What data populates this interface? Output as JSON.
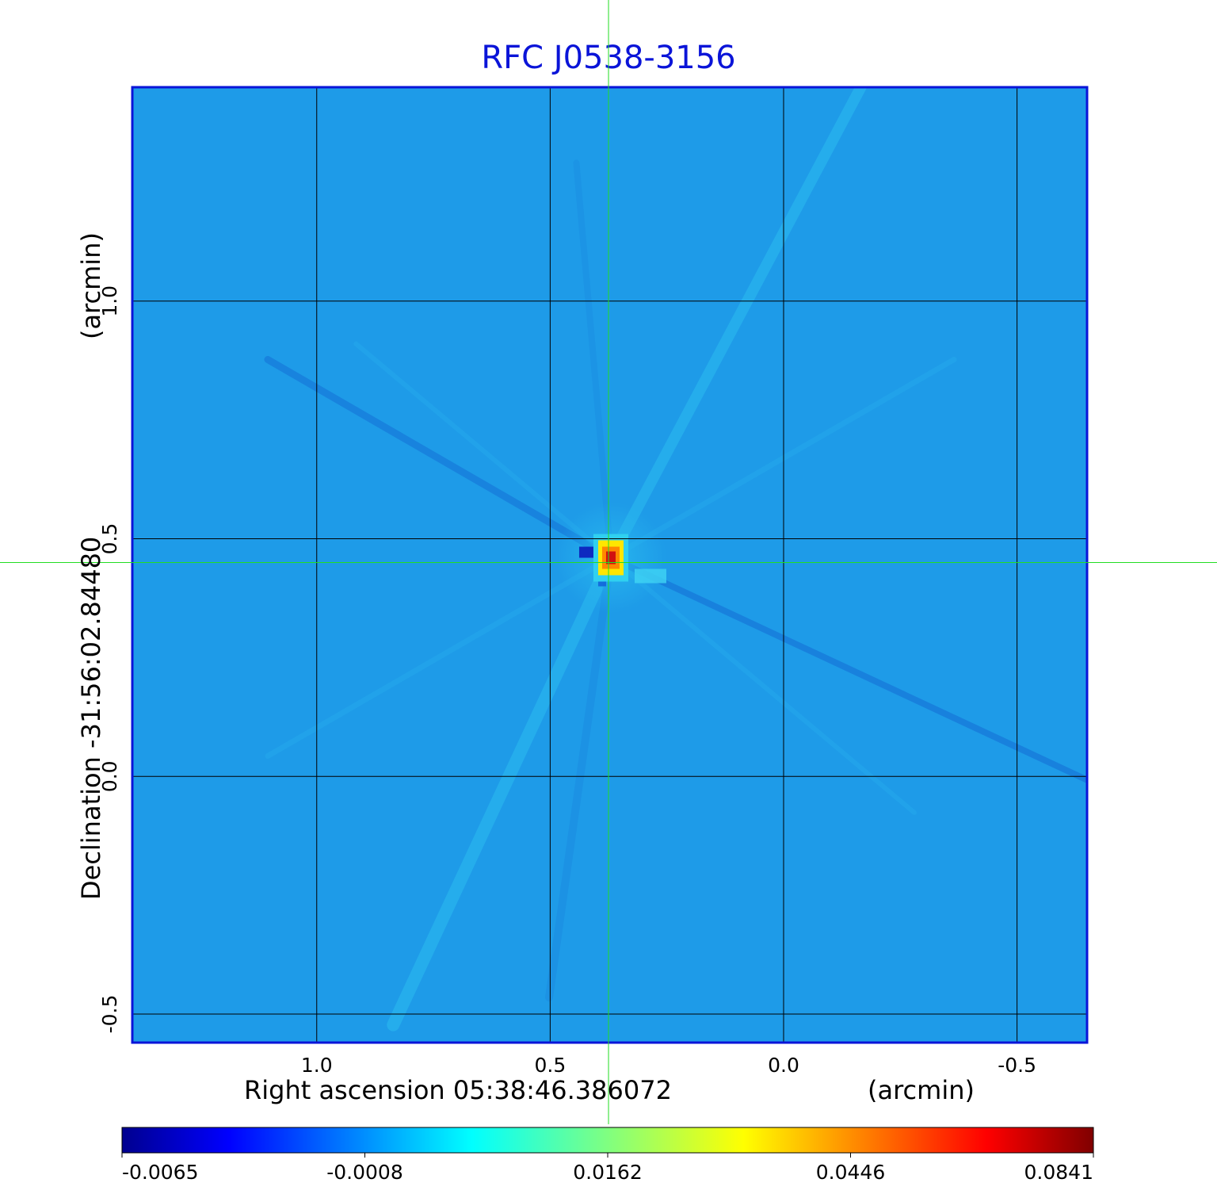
{
  "chart_data": {
    "type": "heatmap",
    "title": "RFC J0538-3156",
    "xlabel": "Right ascension  05:38:46.386072",
    "xlabel_unit": "(arcmin)",
    "ylabel": "Declination  -31:56:02.84480",
    "ylabel_unit": "(arcmin)",
    "x_ticks": [
      1.0,
      0.5,
      0.0,
      -0.5
    ],
    "x_tick_labels": [
      "1.0",
      "0.5",
      "0.0",
      "-0.5"
    ],
    "y_ticks": [
      1.0,
      0.5,
      0.0,
      -0.5
    ],
    "y_tick_labels": [
      "1.0",
      "0.5",
      "0.0",
      "-0.5"
    ],
    "xlim": [
      1.395,
      -0.65
    ],
    "ylim": [
      -0.56,
      1.45
    ],
    "grid": true,
    "crosshair": {
      "x": 0.375,
      "y": 0.45
    },
    "peak": {
      "x": 0.37,
      "y": 0.46,
      "value": 0.0841
    },
    "colorbar": {
      "colormap": "jet",
      "tick_labels": [
        "-0.0065",
        "-0.0008",
        "0.0162",
        "0.0446",
        "0.0841"
      ],
      "placement": "bottom"
    },
    "colors": {
      "title": "#0a14d8",
      "frame": "#0a14d8",
      "background_field": "#1e9be8",
      "crosshair": "#22dd22",
      "grid": "#000000"
    }
  }
}
